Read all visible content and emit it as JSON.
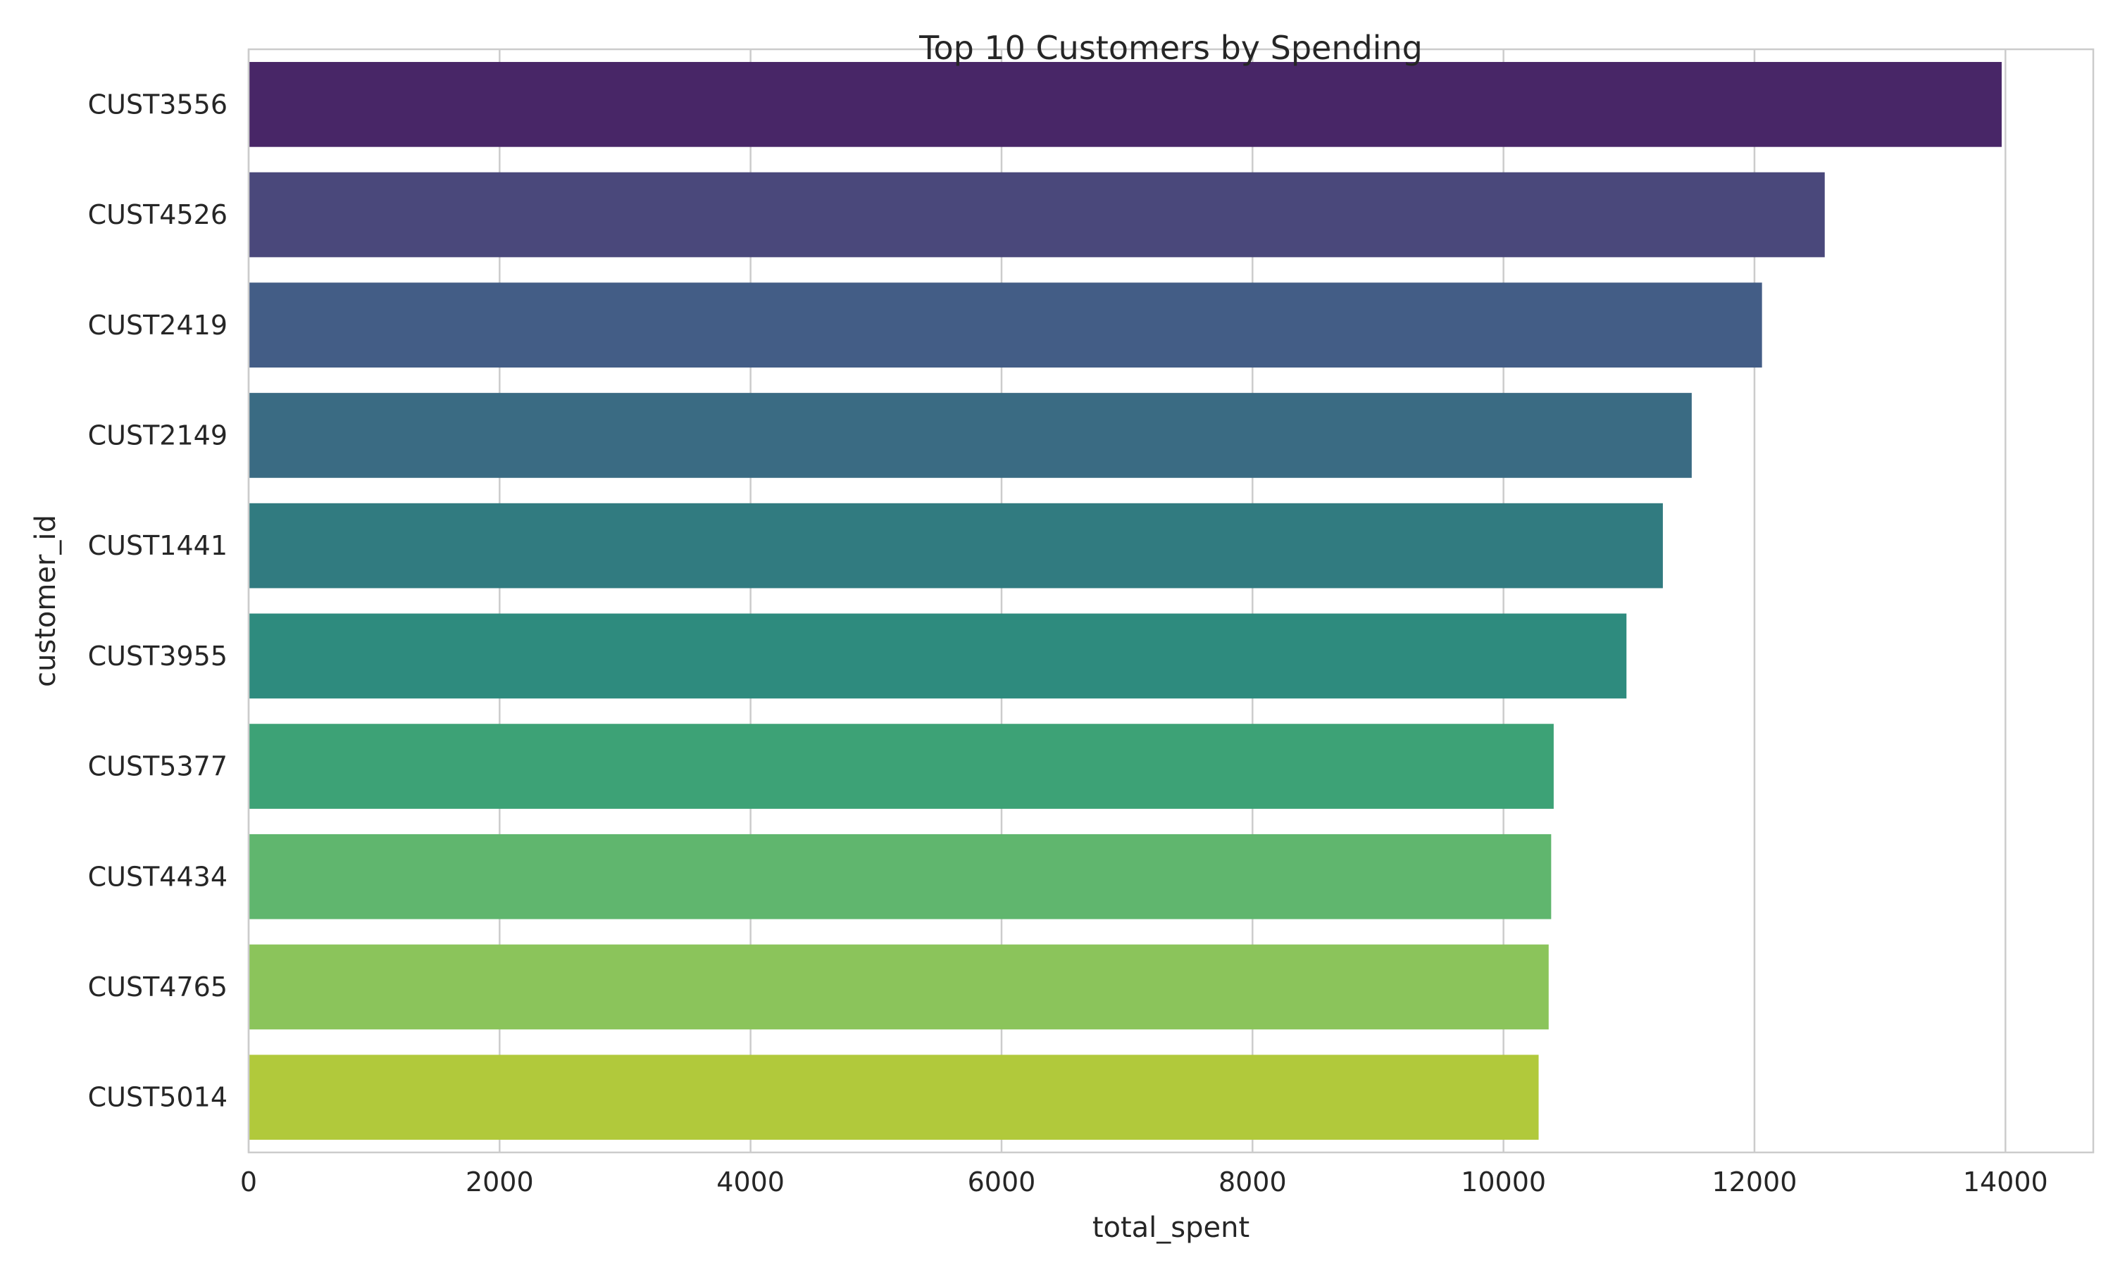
{
  "chart_data": {
    "type": "bar",
    "orientation": "horizontal",
    "title": "Top 10 Customers by Spending",
    "xlabel": "total_spent",
    "ylabel": "customer_id",
    "categories": [
      "CUST3556",
      "CUST4526",
      "CUST2419",
      "CUST2149",
      "CUST1441",
      "CUST3955",
      "CUST5377",
      "CUST4434",
      "CUST4765",
      "CUST5014"
    ],
    "values": [
      13970,
      12560,
      12060,
      11500,
      11270,
      10980,
      10400,
      10380,
      10360,
      10280
    ],
    "colors": [
      "#482667",
      "#4a487b",
      "#435d86",
      "#3a6b83",
      "#317b80",
      "#2e8b7e",
      "#3da276",
      "#60b66e",
      "#8bc45b",
      "#b1c93b"
    ],
    "xlim": [
      0,
      14700
    ],
    "xticks": [
      0,
      2000,
      4000,
      6000,
      8000,
      10000,
      12000,
      14000
    ],
    "grid": true,
    "legend": "none"
  }
}
